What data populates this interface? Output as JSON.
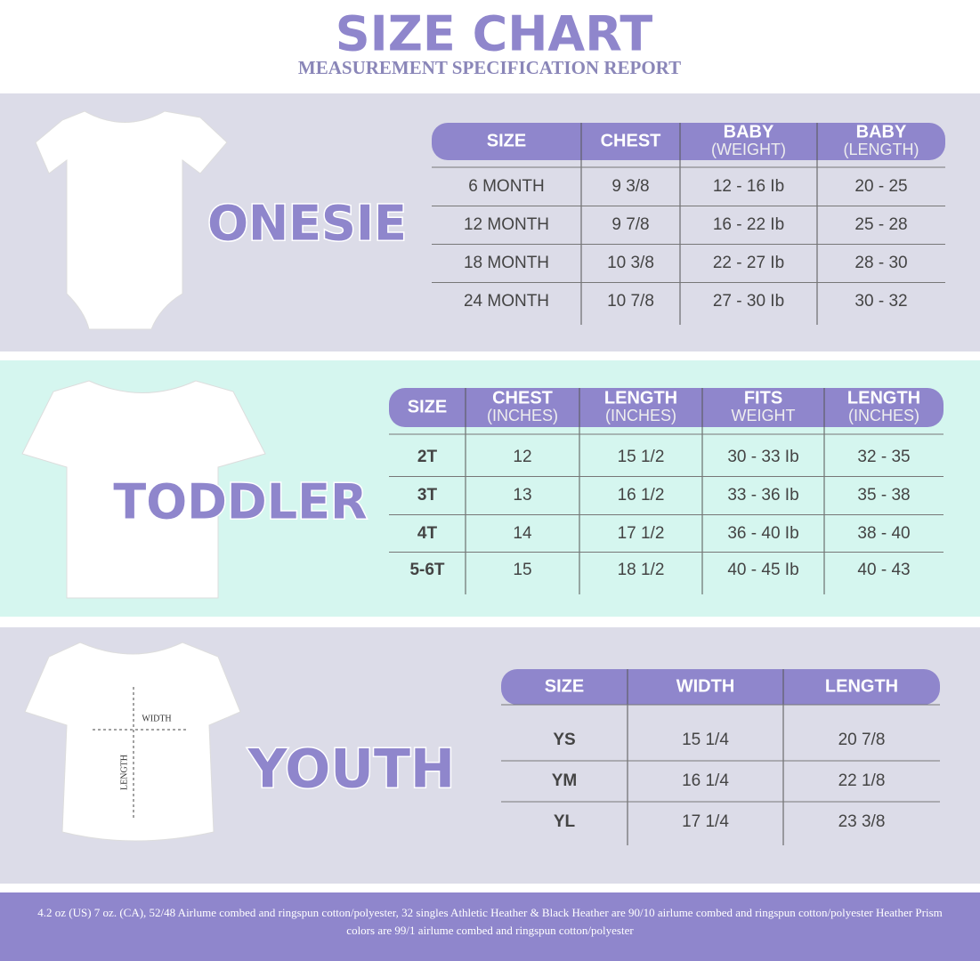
{
  "header": {
    "title": "SIZE CHART",
    "subtitle": "MEASUREMENT SPECIFICATION REPORT"
  },
  "sections": [
    {
      "label": "ONESIE",
      "headers": [
        [
          "SIZE"
        ],
        [
          "CHEST"
        ],
        [
          "BABY",
          "(WEIGHT)"
        ],
        [
          "BABY",
          "(LENGTH)"
        ]
      ],
      "rows": [
        [
          "6 MONTH",
          "9 3/8",
          "12 - 16 Ib",
          "20 - 25"
        ],
        [
          "12 MONTH",
          "9 7/8",
          "16 - 22 Ib",
          "25 - 28"
        ],
        [
          "18  MONTH",
          "10 3/8",
          "22 - 27 Ib",
          "28 - 30"
        ],
        [
          "24 MONTH",
          "10 7/8",
          "27 - 30 Ib",
          "30 - 32"
        ]
      ]
    },
    {
      "label": "TODDLER",
      "headers": [
        [
          "SIZE"
        ],
        [
          "CHEST",
          "(INCHES)"
        ],
        [
          "LENGTH",
          "(INCHES)"
        ],
        [
          "FITS",
          "WEIGHT"
        ],
        [
          "LENGTH",
          "(INCHES)"
        ]
      ],
      "rows": [
        [
          "2T",
          "12",
          "15 1/2",
          "30 - 33 Ib",
          "32 - 35"
        ],
        [
          "3T",
          "13",
          "16 1/2",
          "33 - 36 Ib",
          "35 - 38"
        ],
        [
          "4T",
          "14",
          "17 1/2",
          "36 - 40 Ib",
          "38 - 40"
        ],
        [
          "5-6T",
          "15",
          "18 1/2",
          "40 - 45 Ib",
          "40 - 43"
        ]
      ]
    },
    {
      "label": "YOUTH",
      "diagram_labels": [
        "WIDTH",
        "LENGTH"
      ],
      "headers": [
        [
          "SIZE"
        ],
        [
          "WIDTH"
        ],
        [
          "LENGTH"
        ]
      ],
      "rows": [
        [
          "YS",
          "15 1/4",
          "20 7/8"
        ],
        [
          "YM",
          "16 1/4",
          "22 1/8"
        ],
        [
          "YL",
          "17 1/4",
          "23 3/8"
        ]
      ]
    }
  ],
  "footer": "4.2 oz (US) 7 oz. (CA), 52/48 Airlume combed and ringspun cotton/polyester, 32 singles Athletic Heather & Black Heather are 90/10 airlume combed and ringspun cotton/polyester Heather Prism colors are 99/1 airlume combed and ringspun cotton/polyester"
}
